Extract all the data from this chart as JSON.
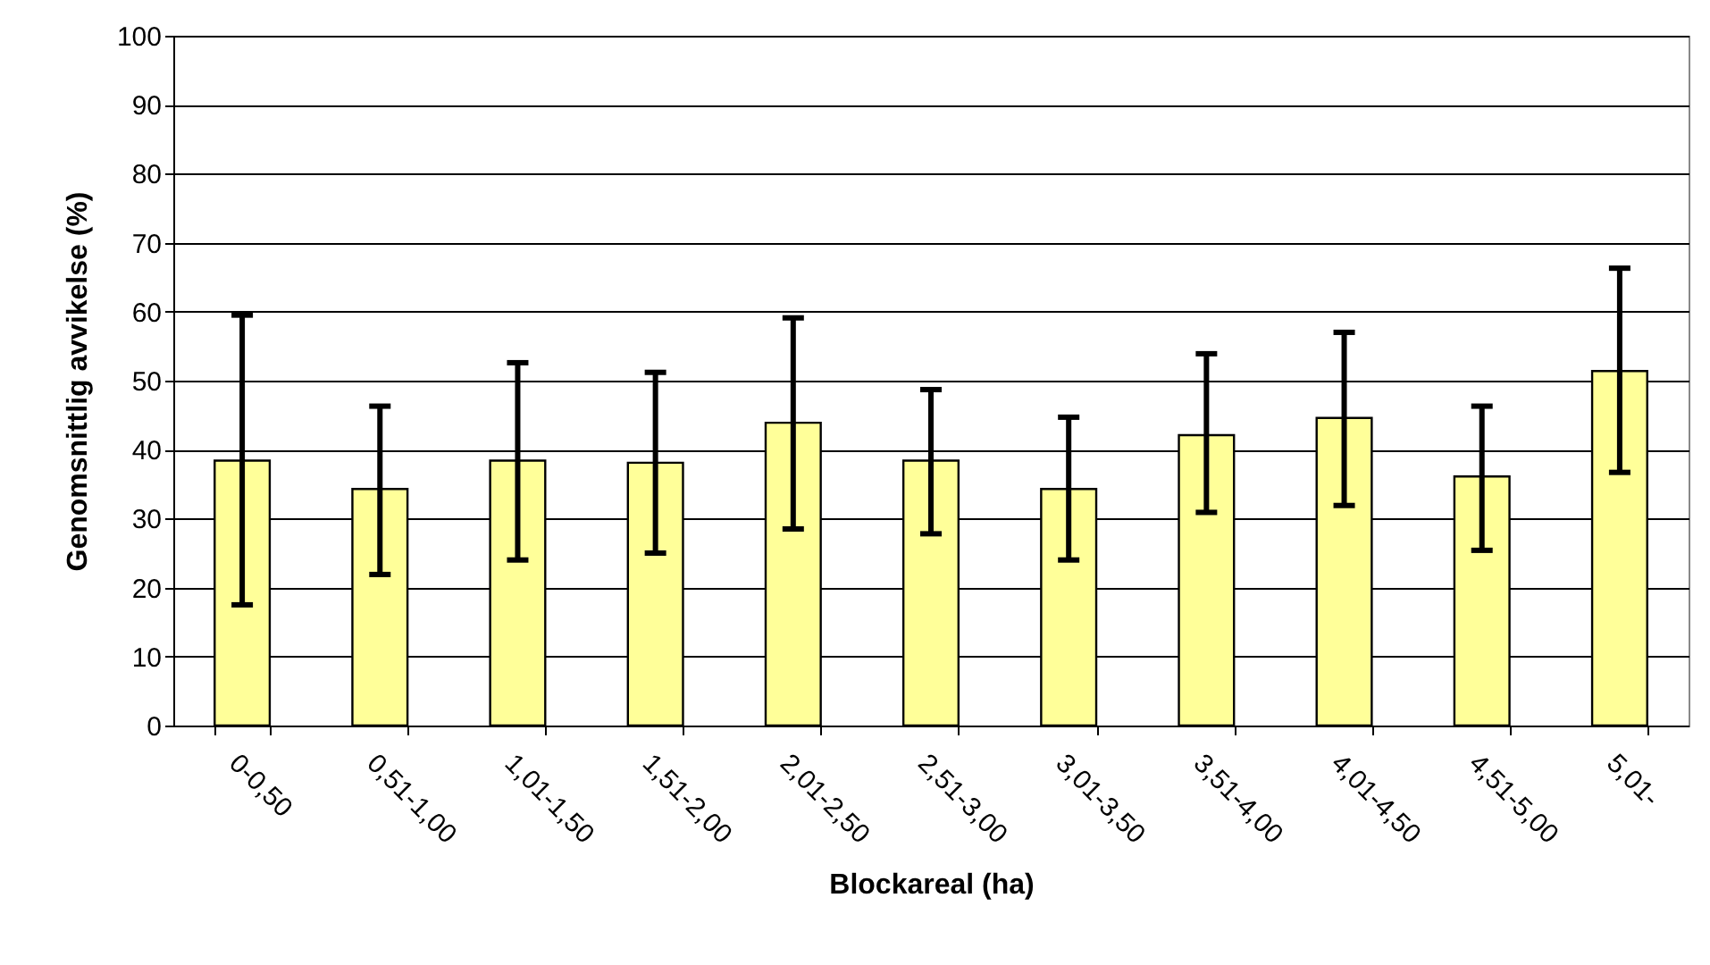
{
  "chart_data": {
    "type": "bar",
    "xlabel": "Blockareal (ha)",
    "ylabel": "Genomsnittlig avvikelse (%)",
    "categories": [
      "0-0,50",
      "0,51-1,00",
      "1,01-1,50",
      "1,51-2,00",
      "2,01-2,50",
      "2,51-3,00",
      "3,01-3,50",
      "3,51-4,00",
      "4,01-4,50",
      "4,51-5,00",
      "5,01-"
    ],
    "values": [
      38.4,
      34.3,
      38.4,
      38.1,
      43.9,
      38.4,
      34.3,
      42.1,
      44.6,
      36.1,
      51.4
    ],
    "errors": [
      [
        17.5,
        59.5
      ],
      [
        21.9,
        46.3
      ],
      [
        24.0,
        52.6
      ],
      [
        25.0,
        51.2
      ],
      [
        28.5,
        59.1
      ],
      [
        27.8,
        48.7
      ],
      [
        24.0,
        44.7
      ],
      [
        30.9,
        53.9
      ],
      [
        31.9,
        57.0
      ],
      [
        25.4,
        46.3
      ],
      [
        36.7,
        66.3
      ]
    ],
    "color": "#ffff99",
    "ylim": [
      0,
      100
    ],
    "yticks": [
      0,
      10,
      20,
      30,
      40,
      50,
      60,
      70,
      80,
      90,
      100
    ],
    "grid": "y"
  }
}
